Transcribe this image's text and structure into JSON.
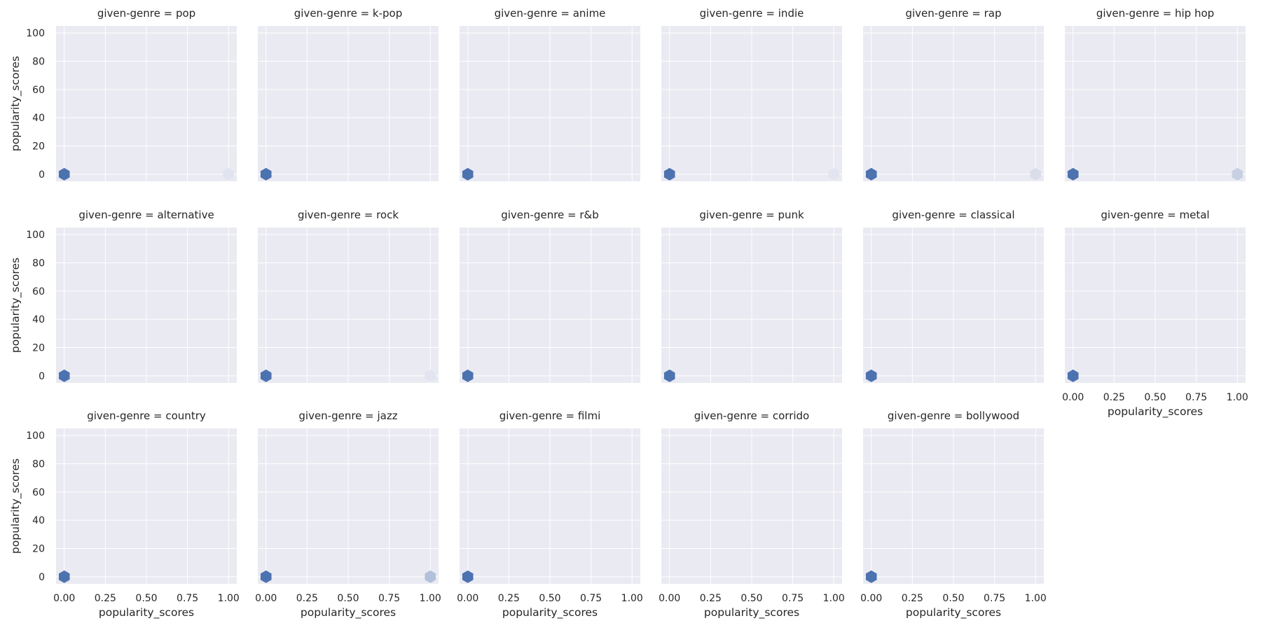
{
  "chart_data": {
    "type": "hexbin",
    "layout": "facet-grid",
    "columns": 6,
    "xlabel": "popularity_scores",
    "ylabel": "popularity_scores",
    "xlim": [
      -0.05,
      1.05
    ],
    "ylim": [
      -5,
      105
    ],
    "x_ticks": [
      "0.00",
      "0.25",
      "0.50",
      "0.75",
      "1.00"
    ],
    "y_ticks": [
      "0",
      "20",
      "40",
      "60",
      "80",
      "100"
    ],
    "grid": true,
    "colors": {
      "background": "#eaeaf2",
      "dense": "#4c72b0",
      "grid": "#ffffff"
    },
    "facets": [
      {
        "title": "given-genre = pop",
        "bins": [
          {
            "x": 0,
            "y": 0,
            "density": 1.0
          },
          {
            "x": 1,
            "y": 0,
            "density": 0.06
          }
        ]
      },
      {
        "title": "given-genre = k-pop",
        "bins": [
          {
            "x": 0,
            "y": 0,
            "density": 1.0
          }
        ]
      },
      {
        "title": "given-genre = anime",
        "bins": [
          {
            "x": 0,
            "y": 0,
            "density": 1.0
          }
        ]
      },
      {
        "title": "given-genre = indie",
        "bins": [
          {
            "x": 0,
            "y": 0,
            "density": 1.0
          },
          {
            "x": 1,
            "y": 0,
            "density": 0.05
          }
        ]
      },
      {
        "title": "given-genre = rap",
        "bins": [
          {
            "x": 0,
            "y": 0,
            "density": 1.0
          },
          {
            "x": 1,
            "y": 0,
            "density": 0.1
          }
        ]
      },
      {
        "title": "given-genre = hip hop",
        "bins": [
          {
            "x": 0,
            "y": 0,
            "density": 1.0
          },
          {
            "x": 1,
            "y": 0,
            "density": 0.22
          }
        ]
      },
      {
        "title": "given-genre = alternative",
        "bins": [
          {
            "x": 0,
            "y": 0,
            "density": 1.0
          }
        ]
      },
      {
        "title": "given-genre = rock",
        "bins": [
          {
            "x": 0,
            "y": 0,
            "density": 1.0
          },
          {
            "x": 1,
            "y": 0,
            "density": 0.05
          }
        ]
      },
      {
        "title": "given-genre = r&b",
        "bins": [
          {
            "x": 0,
            "y": 0,
            "density": 1.0
          }
        ]
      },
      {
        "title": "given-genre = punk",
        "bins": [
          {
            "x": 0,
            "y": 0,
            "density": 1.0
          }
        ]
      },
      {
        "title": "given-genre = classical",
        "bins": [
          {
            "x": 0,
            "y": 0,
            "density": 1.0
          }
        ]
      },
      {
        "title": "given-genre = metal",
        "bins": [
          {
            "x": 0,
            "y": 0,
            "density": 1.0
          }
        ]
      },
      {
        "title": "given-genre = country",
        "bins": [
          {
            "x": 0,
            "y": 0,
            "density": 1.0
          }
        ]
      },
      {
        "title": "given-genre = jazz",
        "bins": [
          {
            "x": 0,
            "y": 0,
            "density": 1.0
          },
          {
            "x": 1,
            "y": 0,
            "density": 0.35
          }
        ]
      },
      {
        "title": "given-genre = filmi",
        "bins": [
          {
            "x": 0,
            "y": 0,
            "density": 1.0
          }
        ]
      },
      {
        "title": "given-genre = corrido",
        "bins": []
      },
      {
        "title": "given-genre = bollywood",
        "bins": [
          {
            "x": 0,
            "y": 0,
            "density": 1.0
          }
        ]
      }
    ]
  }
}
